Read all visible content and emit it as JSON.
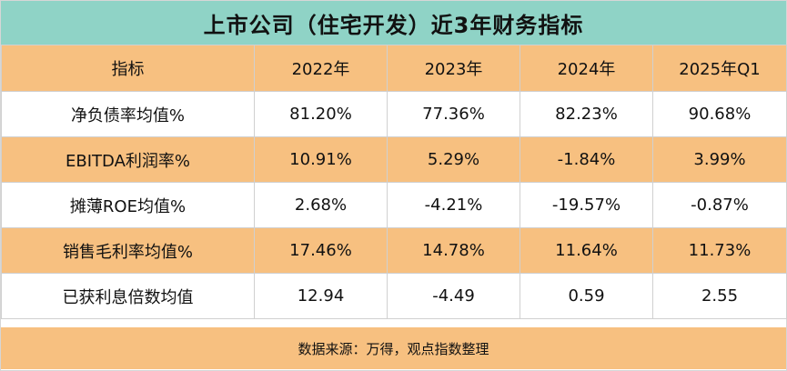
{
  "title": "上市公司（住宅开发）近3年财务指标",
  "table": {
    "headers": [
      "指标",
      "2022年",
      "2023年",
      "2024年",
      "2025年Q1"
    ],
    "rows": [
      {
        "label": "净负债率均值%",
        "values": [
          "81.20%",
          "77.36%",
          "82.23%",
          "90.68%"
        ]
      },
      {
        "label": "EBITDA利润率%",
        "values": [
          "10.91%",
          "5.29%",
          "-1.84%",
          "3.99%"
        ]
      },
      {
        "label": "摊薄ROE均值%",
        "values": [
          "2.68%",
          "-4.21%",
          "-19.57%",
          "-0.87%"
        ]
      },
      {
        "label": "销售毛利率均值%",
        "values": [
          "17.46%",
          "14.78%",
          "11.64%",
          "11.73%"
        ]
      },
      {
        "label": "已获利息倍数均值",
        "values": [
          "12.94",
          "-4.49",
          "0.59",
          "2.55"
        ]
      }
    ]
  },
  "footer": "数据来源：万得，观点指数整理",
  "colors": {
    "title_bg": "#8fd3c6",
    "band": "#f7c080",
    "white": "#ffffff"
  }
}
